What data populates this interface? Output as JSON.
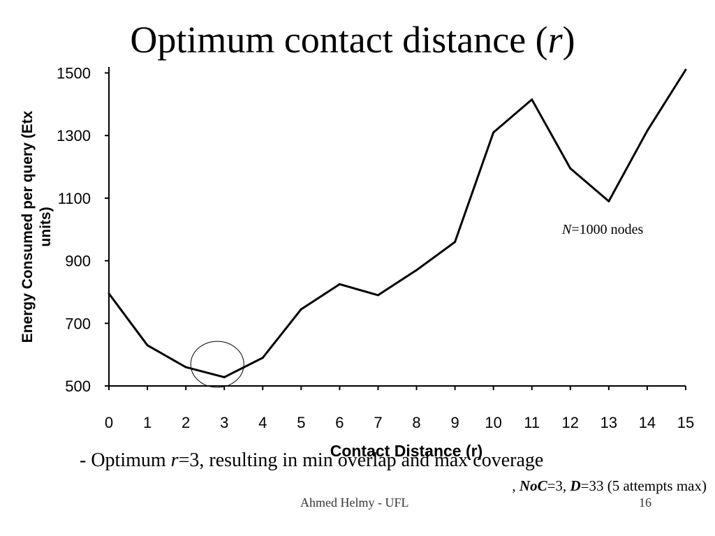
{
  "slide": {
    "title_main": "Optimum contact distance (",
    "title_var": "r",
    "title_close": ")",
    "bullet_prefix": "- Optimum ",
    "bullet_var": "r",
    "bullet_rest": "=3, resulting in min overlap and max coverage",
    "params": {
      "lead": ", ",
      "noc_label": "NoC",
      "noc_value": "=3, ",
      "d_label": "D",
      "d_value": "=33 (5 attempts max)"
    },
    "footer_author": "Ahmed Helmy - UFL",
    "footer_page": "16"
  },
  "chart_data": {
    "type": "line",
    "title": "",
    "xlabel": "Contact Distance (r)",
    "ylabel_line1": "Energy Consumed per query (Etx",
    "ylabel_line2": "units)",
    "x": [
      0,
      1,
      2,
      3,
      4,
      5,
      6,
      7,
      8,
      9,
      10,
      11,
      12,
      13,
      14,
      15
    ],
    "x_tick_labels": [
      "0",
      "1",
      "2",
      "3",
      "4",
      "5",
      "6",
      "7",
      "8",
      "9",
      "10",
      "11",
      "12",
      "13",
      "14",
      "15"
    ],
    "y_ticks": [
      500,
      700,
      900,
      1100,
      1300,
      1500
    ],
    "y_tick_labels": [
      "500",
      "700",
      "900",
      "1100",
      "1300",
      "1500"
    ],
    "xlim": [
      0,
      15
    ],
    "ylim": [
      500,
      1510
    ],
    "grid": false,
    "series": [
      {
        "values": [
          795,
          630,
          560,
          528,
          590,
          745,
          825,
          790,
          870,
          960,
          1310,
          1415,
          1195,
          1090,
          1315,
          1510
        ]
      }
    ],
    "annotation": {
      "var": "N",
      "text": "=1000 nodes"
    },
    "highlight": {
      "x": 3,
      "y": 560
    },
    "line_color": "#000000"
  }
}
